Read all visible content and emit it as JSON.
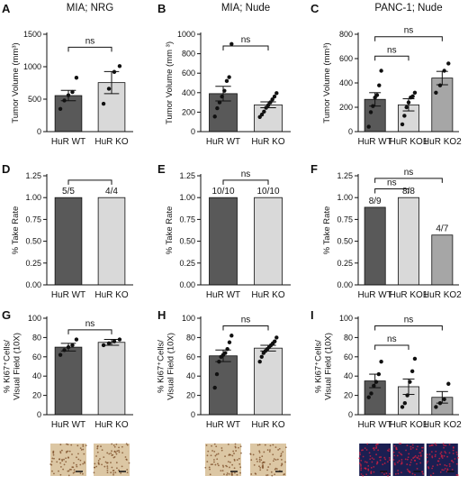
{
  "colors": {
    "dark_bar": "#595959",
    "light_bar": "#d9d9d9",
    "mid_bar": "#a6a6a6",
    "axis": "#111111",
    "brown_tissue_bg": "#dcc7a4",
    "brown_tissue_dot": "#7a4a24",
    "if_bg": "#1b1f52",
    "if_dot": "#e02040"
  },
  "chart_data": [
    {
      "panel": "A",
      "type": "bar",
      "title": "MIA; NRG",
      "ylabel": "Tumor Volume (mm³)",
      "ylim": [
        0,
        1500
      ],
      "yticks": [
        0,
        500,
        1000,
        1500
      ],
      "categories": [
        "HuR WT",
        "HuR KO"
      ],
      "values": [
        555,
        755
      ],
      "errors": [
        80,
        170
      ],
      "points": [
        [
          350,
          480,
          560,
          610,
          830
        ],
        [
          430,
          660,
          920,
          1010
        ]
      ],
      "brackets": [
        {
          "from": 0,
          "to": 1,
          "label": "ns",
          "y": 1300
        }
      ]
    },
    {
      "panel": "B",
      "type": "bar",
      "title": "MIA; Nude",
      "ylabel": "Tumor Volume (mm ³)",
      "ylim": [
        0,
        1000
      ],
      "yticks": [
        0,
        200,
        400,
        600,
        800,
        1000
      ],
      "categories": [
        "HuR WT",
        "HuR KO"
      ],
      "values": [
        390,
        275
      ],
      "errors": [
        75,
        30
      ],
      "points": [
        [
          155,
          240,
          300,
          360,
          420,
          520,
          560,
          900
        ],
        [
          150,
          175,
          205,
          245,
          270,
          300,
          330,
          360,
          395
        ]
      ],
      "brackets": [
        {
          "from": 0,
          "to": 1,
          "label": "ns",
          "y": 880
        }
      ]
    },
    {
      "panel": "C",
      "type": "bar",
      "title": "PANC-1; Nude",
      "ylabel": "Tumor Volume (mm³)",
      "ylim": [
        0,
        800
      ],
      "yticks": [
        0,
        200,
        400,
        600,
        800
      ],
      "categories": [
        "HuR WT",
        "HuR KO1",
        "HuR KO2"
      ],
      "values": [
        265,
        220,
        440
      ],
      "errors": [
        55,
        50,
        55
      ],
      "points": [
        [
          40,
          160,
          210,
          280,
          300,
          380,
          500
        ],
        [
          60,
          130,
          200,
          240,
          280,
          290,
          320
        ],
        [
          320,
          380,
          500,
          560
        ]
      ],
      "brackets": [
        {
          "from": 0,
          "to": 1,
          "label": "ns",
          "y": 620
        },
        {
          "from": 0,
          "to": 2,
          "label": "ns",
          "y": 780
        }
      ]
    },
    {
      "panel": "D",
      "type": "bar",
      "title": "",
      "ylabel": "% Take Rate",
      "ylim": [
        0,
        1.25
      ],
      "yticks": [
        "0.00",
        "0.25",
        "0.50",
        "0.75",
        "1.00",
        "1.25"
      ],
      "categories": [
        "HuR WT",
        "HuR KO"
      ],
      "values": [
        1.0,
        1.0
      ],
      "data_labels": [
        "5/5",
        "4/4"
      ],
      "brackets": [
        {
          "from": 0,
          "to": 1,
          "label": "",
          "y": 1.2
        }
      ]
    },
    {
      "panel": "E",
      "type": "bar",
      "title": "",
      "ylabel": "% Take Rate",
      "ylim": [
        0,
        1.25
      ],
      "yticks": [
        "0.00",
        "0.25",
        "0.50",
        "0.75",
        "1.00",
        "1.25"
      ],
      "categories": [
        "HuR WT",
        "HuR KO"
      ],
      "values": [
        1.0,
        1.0
      ],
      "data_labels": [
        "10/10",
        "10/10"
      ],
      "brackets": [
        {
          "from": 0,
          "to": 1,
          "label": "ns",
          "y": 1.2
        }
      ]
    },
    {
      "panel": "F",
      "type": "bar",
      "title": "",
      "ylabel": "% Take  Rate",
      "ylim": [
        0,
        1.25
      ],
      "yticks": [
        "0.00",
        "0.25",
        "0.50",
        "0.75",
        "1.00",
        "1.25"
      ],
      "categories": [
        "HuR WT",
        "HuR KO1",
        "HuR KO2"
      ],
      "values": [
        0.889,
        1.0,
        0.571
      ],
      "data_labels": [
        "8/9",
        "8/8",
        "4/7"
      ],
      "brackets": [
        {
          "from": 0,
          "to": 1,
          "label": "ns",
          "y": 1.1
        },
        {
          "from": 0,
          "to": 2,
          "label": "ns",
          "y": 1.22
        }
      ]
    },
    {
      "panel": "G",
      "type": "bar",
      "title": "",
      "ylabel": "% Ki67⁺Cells/ Visual Field (10X)",
      "ylabel_lines": [
        "% Ki67⁺Cells/",
        "Visual Field (10X)"
      ],
      "ylim": [
        0,
        100
      ],
      "yticks": [
        0,
        20,
        40,
        60,
        80,
        100
      ],
      "categories": [
        "HuR WT",
        "HuR KO"
      ],
      "values": [
        70,
        75
      ],
      "errors": [
        4,
        3
      ],
      "points": [
        [
          62,
          67,
          70,
          72,
          78
        ],
        [
          72,
          74,
          76,
          78
        ]
      ],
      "brackets": [
        {
          "from": 0,
          "to": 1,
          "label": "ns",
          "y": 88
        }
      ]
    },
    {
      "panel": "H",
      "type": "bar",
      "title": "",
      "ylabel": "% Ki67⁺Cells/ Visual Field (10X)",
      "ylabel_lines": [
        "% Ki67⁺Cells/",
        "Visual Field (10X)"
      ],
      "ylim": [
        0,
        100
      ],
      "yticks": [
        0,
        20,
        40,
        60,
        80,
        100
      ],
      "categories": [
        "HuR WT",
        "HuR KO"
      ],
      "values": [
        61,
        69
      ],
      "errors": [
        6,
        3
      ],
      "points": [
        [
          28,
          42,
          55,
          60,
          62,
          64,
          68,
          75,
          82
        ],
        [
          55,
          60,
          64,
          66,
          68,
          70,
          72,
          74,
          76,
          80
        ]
      ],
      "brackets": [
        {
          "from": 0,
          "to": 1,
          "label": "ns",
          "y": 92
        }
      ]
    },
    {
      "panel": "I",
      "type": "bar",
      "title": "",
      "ylabel": "% Ki67⁺Cells/ Visual Field (10X)",
      "ylabel_lines": [
        "% Ki67⁺Cells/",
        "Visual Field (10X)"
      ],
      "ylim": [
        0,
        100
      ],
      "yticks": [
        0,
        20,
        40,
        60,
        80,
        100
      ],
      "categories": [
        "HuR WT",
        "HuR KO1",
        "HuR KO2"
      ],
      "values": [
        35,
        29,
        18
      ],
      "errors": [
        7,
        8,
        6
      ],
      "points": [
        [
          18,
          22,
          30,
          34,
          42,
          55
        ],
        [
          8,
          12,
          20,
          34,
          45,
          58
        ],
        [
          8,
          12,
          16,
          32
        ]
      ],
      "brackets": [
        {
          "from": 0,
          "to": 1,
          "label": "ns",
          "y": 72
        },
        {
          "from": 0,
          "to": 2,
          "label": "ns",
          "y": 92
        }
      ]
    }
  ]
}
